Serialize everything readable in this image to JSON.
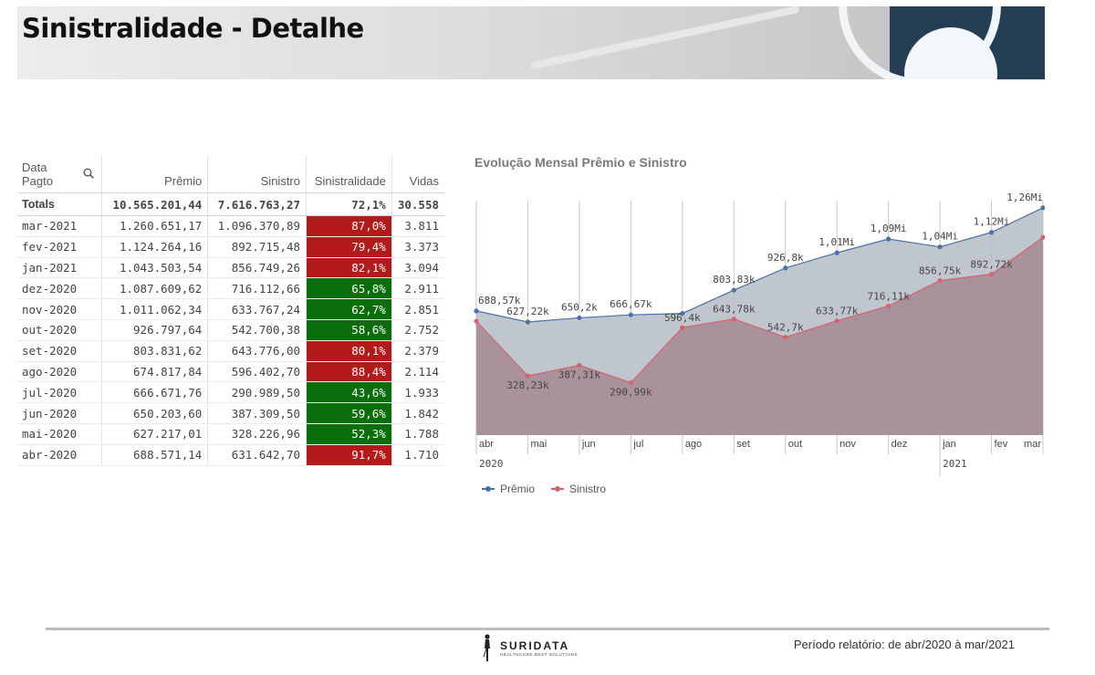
{
  "page": {
    "title": "Sinistralidade - Detalhe"
  },
  "table": {
    "headers": {
      "date": "Data Pagto",
      "premio": "Prêmio",
      "sinistro": "Sinistro",
      "sinistralidade": "Sinistralidade",
      "vidas": "Vidas"
    },
    "totals": {
      "label": "Totals",
      "premio": "10.565.201,44",
      "sinistro": "7.616.763,27",
      "sinistralidade": "72,1%",
      "vidas": "30.558"
    },
    "rows": [
      {
        "date": "mar-2021",
        "premio": "1.260.651,17",
        "sinistro": "1.096.370,89",
        "sinistralidade": "87,0%",
        "status": "red",
        "vidas": "3.811"
      },
      {
        "date": "fev-2021",
        "premio": "1.124.264,16",
        "sinistro": "892.715,48",
        "sinistralidade": "79,4%",
        "status": "red",
        "vidas": "3.373"
      },
      {
        "date": "jan-2021",
        "premio": "1.043.503,54",
        "sinistro": "856.749,26",
        "sinistralidade": "82,1%",
        "status": "red",
        "vidas": "3.094"
      },
      {
        "date": "dez-2020",
        "premio": "1.087.609,62",
        "sinistro": "716.112,66",
        "sinistralidade": "65,8%",
        "status": "green",
        "vidas": "2.911"
      },
      {
        "date": "nov-2020",
        "premio": "1.011.062,34",
        "sinistro": "633.767,24",
        "sinistralidade": "62,7%",
        "status": "green",
        "vidas": "2.851"
      },
      {
        "date": "out-2020",
        "premio": "926.797,64",
        "sinistro": "542.700,38",
        "sinistralidade": "58,6%",
        "status": "green",
        "vidas": "2.752"
      },
      {
        "date": "set-2020",
        "premio": "803.831,62",
        "sinistro": "643.776,00",
        "sinistralidade": "80,1%",
        "status": "red",
        "vidas": "2.379"
      },
      {
        "date": "ago-2020",
        "premio": "674.817,84",
        "sinistro": "596.402,70",
        "sinistralidade": "88,4%",
        "status": "red",
        "vidas": "2.114"
      },
      {
        "date": "jul-2020",
        "premio": "666.671,76",
        "sinistro": "290.989,50",
        "sinistralidade": "43,6%",
        "status": "green",
        "vidas": "1.933"
      },
      {
        "date": "jun-2020",
        "premio": "650.203,60",
        "sinistro": "387.309,50",
        "sinistralidade": "59,6%",
        "status": "green",
        "vidas": "1.842"
      },
      {
        "date": "mai-2020",
        "premio": "627.217,01",
        "sinistro": "328.226,96",
        "sinistralidade": "52,3%",
        "status": "green",
        "vidas": "1.788"
      },
      {
        "date": "abr-2020",
        "premio": "688.571,14",
        "sinistro": "631.642,70",
        "sinistralidade": "91,7%",
        "status": "red",
        "vidas": "1.710"
      }
    ]
  },
  "chart_data": {
    "type": "area",
    "title": "Evolução Mensal Prêmio e Sinistro",
    "categories": [
      "abr",
      "mai",
      "jun",
      "jul",
      "ago",
      "set",
      "out",
      "nov",
      "dez",
      "jan",
      "fev",
      "mar"
    ],
    "year_labels": [
      "2020",
      "2021"
    ],
    "series": [
      {
        "name": "Prêmio",
        "color": "#4a72a8",
        "values": [
          688571,
          627217,
          650204,
          666672,
          674818,
          803832,
          926798,
          1011062,
          1087610,
          1043504,
          1124264,
          1260651
        ],
        "labels": [
          "688,57k",
          "627,22k",
          "650,2k",
          "666,67k",
          "",
          "803,83k",
          "926,8k",
          "1,01Mi",
          "1,09Mi",
          "1,04Mi",
          "1,12Mi",
          "1,26Mi"
        ]
      },
      {
        "name": "Sinistro",
        "color": "#d3646f",
        "values": [
          631643,
          328227,
          387310,
          290990,
          596403,
          643776,
          542700,
          633767,
          716113,
          856749,
          892715,
          1096371
        ],
        "labels": [
          "",
          "328,23k",
          "387,31k",
          "290,99k",
          "596,4k",
          "643,78k",
          "542,7k",
          "633,77k",
          "716,11k",
          "856,75k",
          "892,72k",
          ""
        ]
      }
    ],
    "ylim": [
      0,
      1300000
    ],
    "grid": true,
    "legend": "bottom-left"
  },
  "footer": {
    "logo_name": "SURIDATA",
    "logo_tagline": "HEALTHCARE BEST SOLUTIONS",
    "period": "Período relatório: de abr/2020 à mar/2021"
  }
}
